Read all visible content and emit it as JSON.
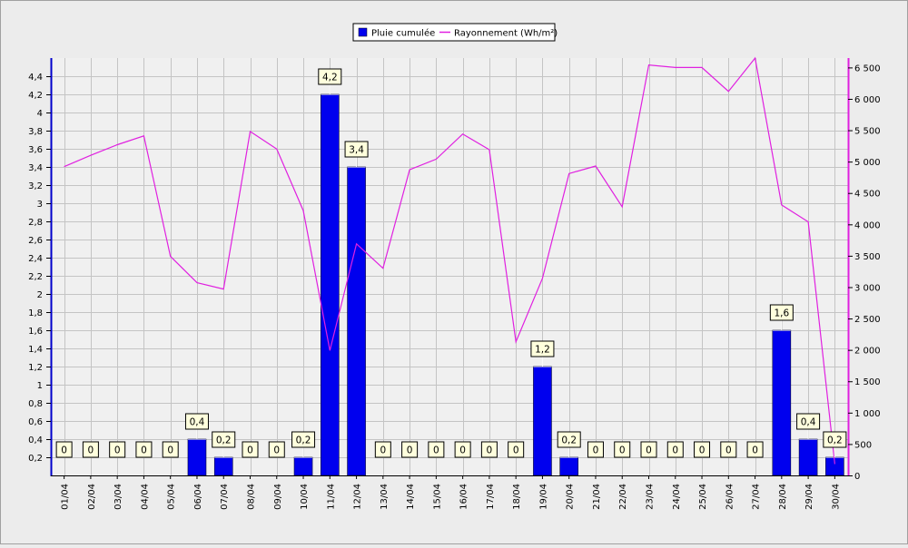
{
  "chart_data": {
    "type": "bar",
    "legend_position": "top-center",
    "grid": true,
    "title": "",
    "xlabel": "",
    "ylabel": "",
    "y2label": "",
    "categories": [
      "01/04",
      "02/04",
      "03/04",
      "04/04",
      "05/04",
      "06/04",
      "07/04",
      "08/04",
      "09/04",
      "10/04",
      "11/04",
      "12/04",
      "13/04",
      "14/04",
      "15/04",
      "16/04",
      "17/04",
      "18/04",
      "19/04",
      "20/04",
      "21/04",
      "22/04",
      "23/04",
      "24/04",
      "25/04",
      "26/04",
      "27/04",
      "28/04",
      "29/04",
      "30/04"
    ],
    "ylim": [
      0,
      4.6
    ],
    "y2lim": [
      0,
      6650
    ],
    "yticks": [
      0.2,
      0.4,
      0.6,
      0.8,
      1,
      1.2,
      1.4,
      1.6,
      1.8,
      2,
      2.2,
      2.4,
      2.6,
      2.8,
      3,
      3.2,
      3.4,
      3.6,
      3.8,
      4,
      4.2,
      4.4
    ],
    "y2ticks": [
      0,
      500,
      1000,
      1500,
      2000,
      2500,
      3000,
      3500,
      4000,
      4500,
      5000,
      5500,
      6000,
      6500
    ],
    "series": [
      {
        "name": "Pluie cumulée",
        "type": "bar",
        "axis": "left",
        "color": "#0000ee",
        "values": [
          0,
          0,
          0,
          0,
          0,
          0.4,
          0.2,
          0,
          0,
          0.2,
          4.2,
          3.4,
          0,
          0,
          0,
          0,
          0,
          0,
          1.2,
          0.2,
          0,
          0,
          0,
          0,
          0,
          0,
          0,
          1.6,
          0.4,
          0.2
        ],
        "labels": [
          "0",
          "0",
          "0",
          "0",
          "0",
          "0,4",
          "0,2",
          "0",
          "0",
          "0,2",
          "4,2",
          "3,4",
          "0",
          "0",
          "0",
          "0",
          "0",
          "0",
          "1,2",
          "0,2",
          "0",
          "0",
          "0",
          "0",
          "0",
          "0",
          "0",
          "1,6",
          "0,4",
          "0,2"
        ]
      },
      {
        "name": "Rayonnement (Wh/m²)",
        "type": "line",
        "axis": "right",
        "color": "#e020e0",
        "values": [
          4920,
          5100,
          5270,
          5410,
          3490,
          3070,
          2970,
          5480,
          5200,
          4220,
          1990,
          3690,
          3300,
          4870,
          5040,
          5440,
          5190,
          2130,
          3140,
          4810,
          4930,
          4280,
          6540,
          6500,
          6500,
          6120,
          6650,
          4310,
          4040,
          180
        ]
      }
    ]
  }
}
